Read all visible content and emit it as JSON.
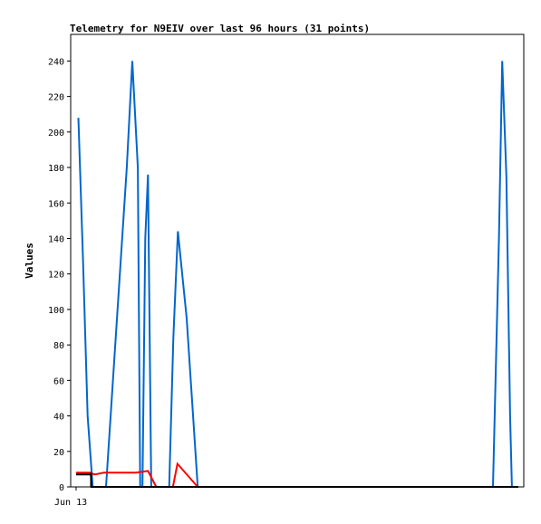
{
  "chart_data": {
    "type": "line",
    "title": "Telemetry for N9EIV over last 96 hours (31 points)",
    "xlabel": "",
    "ylabel": "Values",
    "ylim": [
      0,
      255
    ],
    "y_ticks": [
      0,
      20,
      40,
      60,
      80,
      100,
      120,
      140,
      160,
      180,
      200,
      220,
      240
    ],
    "x_ticks": [
      {
        "label": "Jun 13",
        "x": 0
      }
    ],
    "xlim": [
      0,
      96
    ],
    "grid": false,
    "legend": "none",
    "series": [
      {
        "color": "#0066cc",
        "points": [
          [
            0.5,
            208
          ],
          [
            1.5,
            128
          ],
          [
            2.5,
            40
          ],
          [
            3.6,
            0
          ],
          [
            6.5,
            0
          ],
          [
            11.0,
            180
          ],
          [
            12.2,
            240
          ],
          [
            13.4,
            180
          ],
          [
            13.9,
            0
          ],
          [
            14.4,
            0
          ],
          [
            15.0,
            140
          ],
          [
            15.6,
            176
          ],
          [
            16.3,
            0
          ],
          [
            20.2,
            0
          ],
          [
            21.1,
            84
          ],
          [
            22.1,
            144
          ],
          [
            24.0,
            95
          ],
          [
            26.4,
            0
          ],
          [
            90.5,
            0
          ],
          [
            91.8,
            140
          ],
          [
            92.5,
            240
          ],
          [
            93.4,
            175
          ],
          [
            94.2,
            40
          ],
          [
            94.6,
            0
          ]
        ]
      },
      {
        "color": "#ff0000",
        "points": [
          [
            0.0,
            8
          ],
          [
            3.0,
            8
          ],
          [
            4.0,
            7
          ],
          [
            6.0,
            8
          ],
          [
            13.0,
            8
          ],
          [
            15.6,
            9
          ],
          [
            17.4,
            0
          ],
          [
            21.0,
            0
          ],
          [
            22.0,
            13
          ],
          [
            26.4,
            0
          ]
        ]
      },
      {
        "color": "#000000",
        "points": [
          [
            0.0,
            7
          ],
          [
            3.2,
            7
          ],
          [
            3.3,
            0
          ],
          [
            96.0,
            0
          ]
        ]
      },
      {
        "color": "#000000",
        "points": [
          [
            3.25,
            8
          ],
          [
            3.25,
            0
          ]
        ]
      }
    ]
  }
}
